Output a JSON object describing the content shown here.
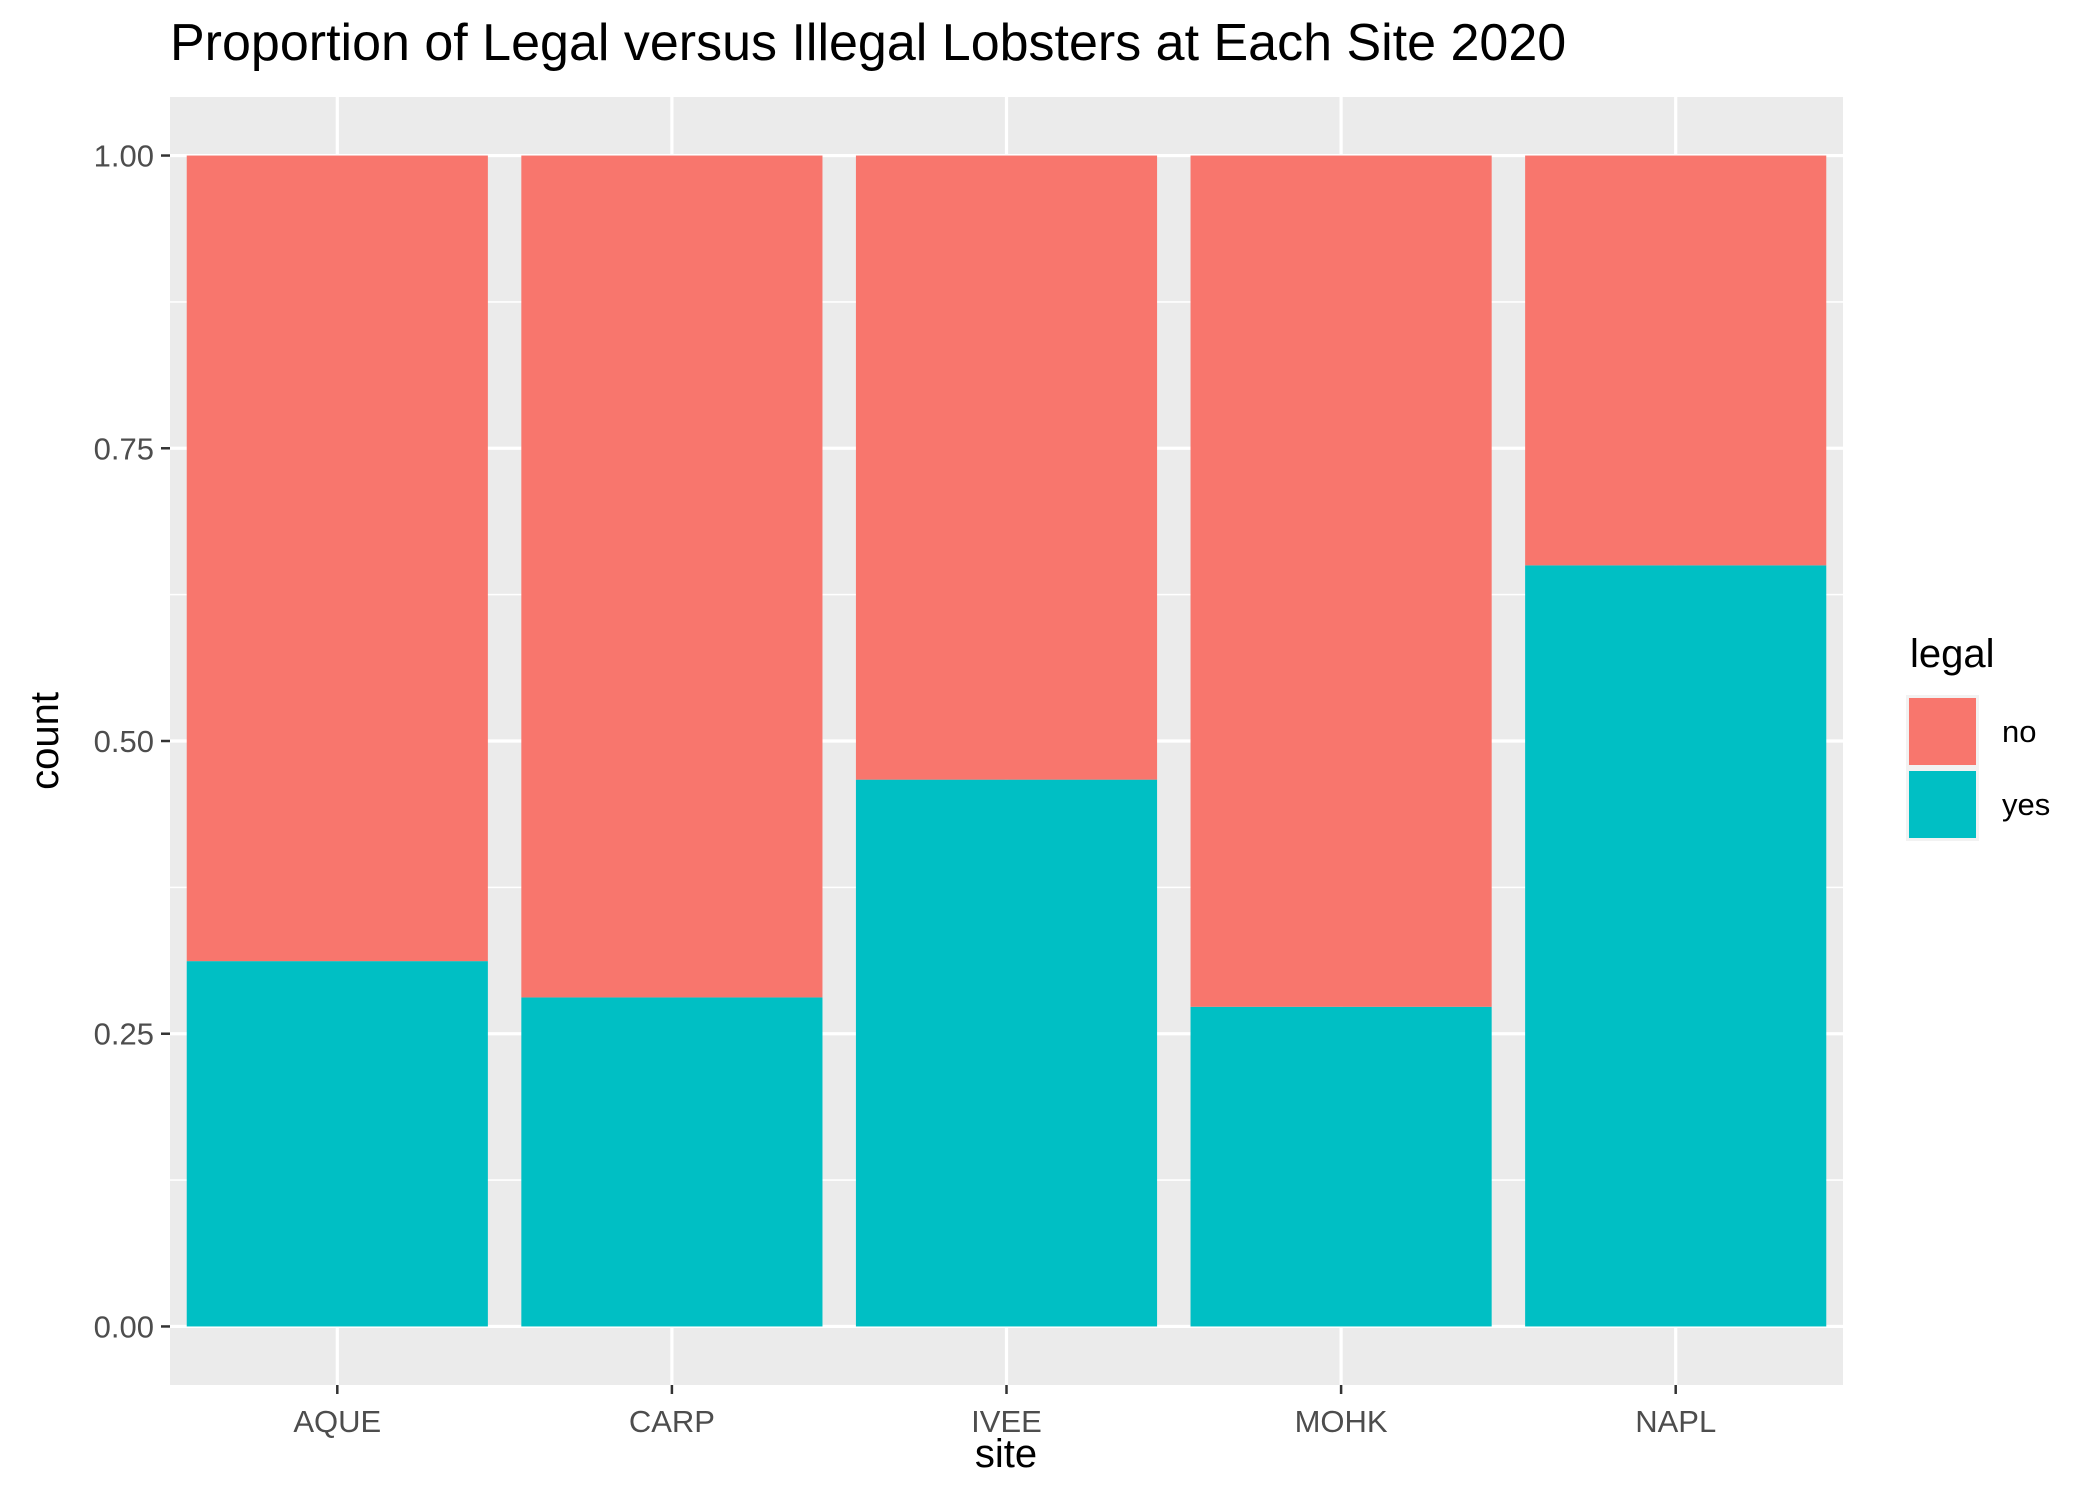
{
  "chart_data": {
    "type": "bar",
    "stacked": true,
    "title": "Proportion of Legal versus Illegal Lobsters at Each Site 2020",
    "xlabel": "site",
    "ylabel": "count",
    "categories": [
      "AQUE",
      "CARP",
      "IVEE",
      "MOHK",
      "NAPL"
    ],
    "series": [
      {
        "name": "no",
        "values": [
          0.688,
          0.719,
          0.533,
          0.727,
          0.35
        ],
        "color": "#F8766D"
      },
      {
        "name": "yes",
        "values": [
          0.312,
          0.281,
          0.467,
          0.273,
          0.65
        ],
        "color": "#00BFC4"
      }
    ],
    "ylim": [
      -0.05,
      1.05
    ],
    "yticks": [
      0,
      0.25,
      0.5,
      0.75,
      1
    ],
    "ytick_labels": [
      "0.00",
      "0.25",
      "0.50",
      "0.75",
      "1.00"
    ],
    "legend": {
      "title": "legal",
      "position": "right"
    },
    "grid": true,
    "panel_background": "#EBEBEB"
  }
}
